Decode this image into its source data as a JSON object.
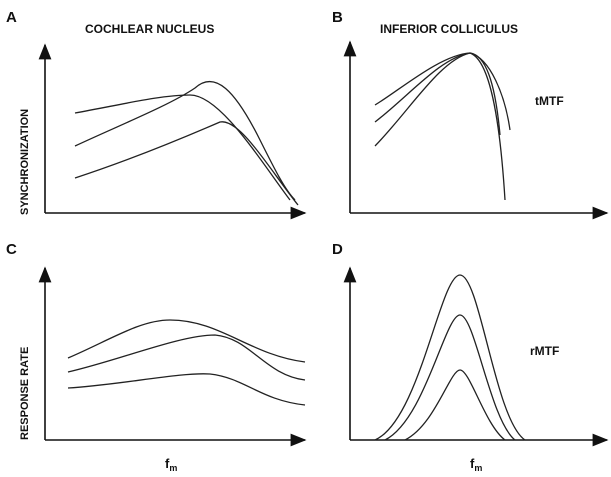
{
  "panels": [
    {
      "letter": "A",
      "title": "COCHLEAR NUCLEUS",
      "y_label": "SYNCHRONIZATION"
    },
    {
      "letter": "B",
      "title": "INFERIOR COLLICULUS",
      "annotation": "tMTF"
    },
    {
      "letter": "C",
      "y_label": "RESPONSE RATE"
    },
    {
      "letter": "D",
      "annotation": "rMTF"
    }
  ],
  "x_label": {
    "base": "f",
    "sub": "m"
  }
}
